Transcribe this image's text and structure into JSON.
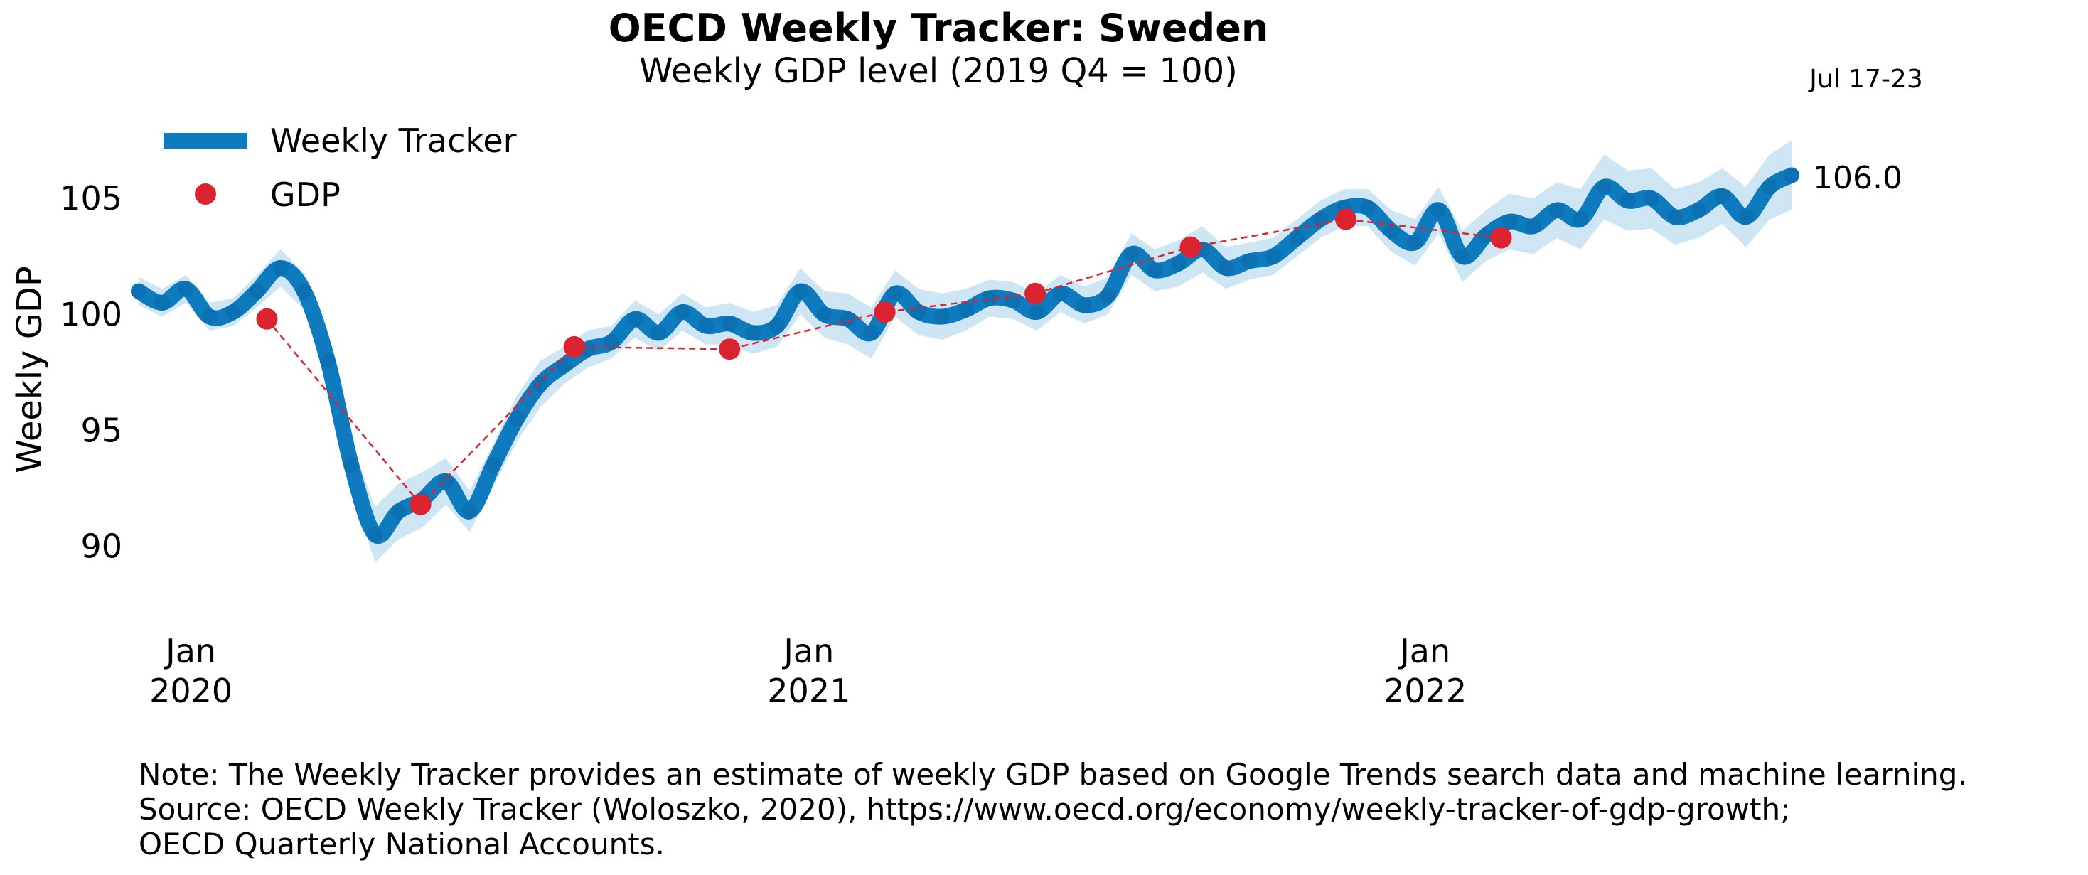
{
  "chart_data": {
    "type": "line",
    "title": "OECD Weekly Tracker: Sweden",
    "subtitle": "Weekly GDP level (2019 Q4 = 100)",
    "ylabel": "Weekly GDP",
    "ylim": [
      87.5,
      108.5
    ],
    "yticks": [
      90,
      95,
      100,
      105
    ],
    "xlim": [
      "2019-12-01",
      "2022-08-06"
    ],
    "xticks": [
      {
        "date": "2020-01-01",
        "label_top": "Jan",
        "label_bottom": "2020"
      },
      {
        "date": "2021-01-01",
        "label_top": "Jan",
        "label_bottom": "2021"
      },
      {
        "date": "2022-01-01",
        "label_top": "Jan",
        "label_bottom": "2022"
      }
    ],
    "grid": false,
    "legend": {
      "position": "top-left",
      "entries": [
        "Weekly Tracker",
        "GDP"
      ]
    },
    "latest_period_label": "Jul 17-23",
    "latest_value_label": "106.0",
    "series": [
      {
        "name": "Weekly Tracker",
        "color": "#0f7bbf",
        "band_color": "#a6cfea",
        "points": [
          [
            "2019-12-01",
            101.0
          ],
          [
            "2019-12-15",
            100.5
          ],
          [
            "2019-12-29",
            101.1
          ],
          [
            "2020-01-12",
            99.9
          ],
          [
            "2020-01-26",
            100.1
          ],
          [
            "2020-02-09",
            101.0
          ],
          [
            "2020-02-23",
            102.0
          ],
          [
            "2020-03-08",
            101.0
          ],
          [
            "2020-03-22",
            98.0
          ],
          [
            "2020-04-05",
            93.5
          ],
          [
            "2020-04-19",
            90.5
          ],
          [
            "2020-05-03",
            91.5
          ],
          [
            "2020-05-17",
            92.0
          ],
          [
            "2020-05-31",
            92.8
          ],
          [
            "2020-06-14",
            91.5
          ],
          [
            "2020-06-28",
            93.5
          ],
          [
            "2020-07-12",
            95.5
          ],
          [
            "2020-07-26",
            97.0
          ],
          [
            "2020-08-09",
            97.8
          ],
          [
            "2020-08-23",
            98.5
          ],
          [
            "2020-09-06",
            98.8
          ],
          [
            "2020-09-20",
            99.8
          ],
          [
            "2020-10-04",
            99.2
          ],
          [
            "2020-10-18",
            100.1
          ],
          [
            "2020-11-01",
            99.5
          ],
          [
            "2020-11-15",
            99.6
          ],
          [
            "2020-11-29",
            99.2
          ],
          [
            "2020-12-13",
            99.5
          ],
          [
            "2020-12-27",
            101.0
          ],
          [
            "2021-01-10",
            100.0
          ],
          [
            "2021-01-24",
            99.8
          ],
          [
            "2021-02-07",
            99.2
          ],
          [
            "2021-02-21",
            100.9
          ],
          [
            "2021-03-07",
            100.1
          ],
          [
            "2021-03-21",
            99.9
          ],
          [
            "2021-04-04",
            100.2
          ],
          [
            "2021-04-18",
            100.7
          ],
          [
            "2021-05-02",
            100.6
          ],
          [
            "2021-05-16",
            100.1
          ],
          [
            "2021-05-30",
            100.9
          ],
          [
            "2021-06-13",
            100.4
          ],
          [
            "2021-06-27",
            100.8
          ],
          [
            "2021-07-11",
            102.6
          ],
          [
            "2021-07-25",
            101.9
          ],
          [
            "2021-08-08",
            102.2
          ],
          [
            "2021-08-22",
            102.8
          ],
          [
            "2021-09-05",
            102.0
          ],
          [
            "2021-09-19",
            102.3
          ],
          [
            "2021-10-03",
            102.5
          ],
          [
            "2021-10-17",
            103.3
          ],
          [
            "2021-10-31",
            104.1
          ],
          [
            "2021-11-14",
            104.6
          ],
          [
            "2021-11-28",
            104.6
          ],
          [
            "2021-12-12",
            103.6
          ],
          [
            "2021-12-26",
            103.1
          ],
          [
            "2022-01-09",
            104.5
          ],
          [
            "2022-01-23",
            102.5
          ],
          [
            "2022-02-06",
            103.4
          ],
          [
            "2022-02-20",
            104.0
          ],
          [
            "2022-03-06",
            103.8
          ],
          [
            "2022-03-20",
            104.5
          ],
          [
            "2022-04-03",
            104.1
          ],
          [
            "2022-04-17",
            105.5
          ],
          [
            "2022-05-01",
            104.9
          ],
          [
            "2022-05-15",
            105.0
          ],
          [
            "2022-05-29",
            104.2
          ],
          [
            "2022-06-12",
            104.5
          ],
          [
            "2022-06-26",
            105.1
          ],
          [
            "2022-07-10",
            104.2
          ],
          [
            "2022-07-24",
            105.5
          ],
          [
            "2022-08-06",
            106.0
          ]
        ],
        "band_halfwidth": [
          0.6,
          0.6,
          0.6,
          0.6,
          0.6,
          0.7,
          0.8,
          0.8,
          0.9,
          1.0,
          1.2,
          1.2,
          1.2,
          1.0,
          0.9,
          0.9,
          1.0,
          1.0,
          0.8,
          0.8,
          0.7,
          0.8,
          0.8,
          0.8,
          0.8,
          0.9,
          0.9,
          0.9,
          1.0,
          1.0,
          1.1,
          1.1,
          1.0,
          1.0,
          1.0,
          0.9,
          0.8,
          0.8,
          0.8,
          0.8,
          0.8,
          0.8,
          0.9,
          0.9,
          1.0,
          1.0,
          0.9,
          0.8,
          0.8,
          0.8,
          0.8,
          0.8,
          0.8,
          0.9,
          1.0,
          1.0,
          1.1,
          1.1,
          1.2,
          1.2,
          1.2,
          1.3,
          1.4,
          1.3,
          1.3,
          1.2,
          1.2,
          1.2,
          1.3,
          1.4,
          1.5
        ]
      },
      {
        "name": "GDP",
        "color": "#dc2430",
        "points": [
          [
            "2020-02-15",
            99.8
          ],
          [
            "2020-05-16",
            91.8
          ],
          [
            "2020-08-15",
            98.6
          ],
          [
            "2020-11-15",
            98.5
          ],
          [
            "2021-02-15",
            100.1
          ],
          [
            "2021-05-15",
            100.9
          ],
          [
            "2021-08-15",
            102.9
          ],
          [
            "2021-11-15",
            104.1
          ],
          [
            "2022-02-15",
            103.3
          ]
        ]
      }
    ]
  },
  "footer": {
    "note": "Note: The Weekly Tracker provides an estimate of weekly GDP based on Google Trends search data and machine learning.",
    "source_line1": "Source: OECD Weekly Tracker (Woloszko, 2020), https://www.oecd.org/economy/weekly-tracker-of-gdp-growth;",
    "source_line2": "OECD Quarterly National Accounts."
  }
}
